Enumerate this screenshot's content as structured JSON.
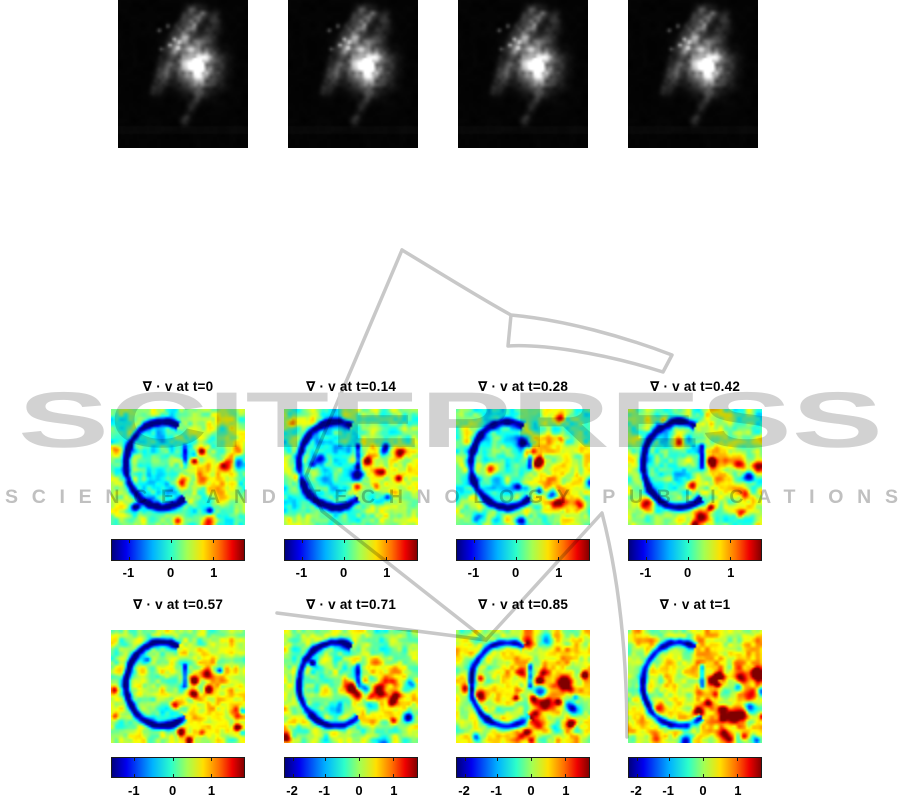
{
  "figure": {
    "description_row_top": {
      "grayscale_frame_count": 4
    },
    "row1": {
      "panels": [
        {
          "title": "∇ · v at t=0",
          "ticks": [
            "-1",
            "0",
            "1"
          ]
        },
        {
          "title": "∇ · v at t=0.14",
          "ticks": [
            "-1",
            "0",
            "1"
          ]
        },
        {
          "title": "∇ · v at t=0.28",
          "ticks": [
            "-1",
            "0",
            "1"
          ]
        },
        {
          "title": "∇ · v at t=0.42",
          "ticks": [
            "-1",
            "0",
            "1"
          ]
        }
      ]
    },
    "row2": {
      "panels": [
        {
          "title": "∇ · v at t=0.57",
          "ticks": [
            "-1",
            "0",
            "1"
          ]
        },
        {
          "title": "∇ · v at t=0.71",
          "ticks": [
            "-2",
            "-1",
            "0",
            "1"
          ]
        },
        {
          "title": "∇ · v at t=0.85",
          "ticks": [
            "-2",
            "-1",
            "0",
            "1"
          ]
        },
        {
          "title": "∇ · v at t=1",
          "ticks": [
            "-2",
            "-1",
            "0",
            "1"
          ]
        }
      ]
    }
  },
  "watermark": {
    "big_text": "SCITEPRESS",
    "sub_text": "SCIENCE AND TECHNOLOGY PUBLICATIONS"
  },
  "colors": {
    "watermark_gray_big": "#d2d2d2",
    "watermark_gray_small": "#c0c0c0",
    "book_stroke": "#c8c8c8",
    "colorbar_border": "#1a1a1a",
    "colormap": "jet"
  },
  "chart_data": {
    "type": "heatmap",
    "title": "Divergence of velocity field over time with MR frames",
    "colormap": "jet",
    "panels": [
      {
        "title": "∇ · v at t=0",
        "colorbar_tick_values": [
          -1,
          0,
          1
        ]
      },
      {
        "title": "∇ · v at t=0.14",
        "colorbar_tick_values": [
          -1,
          0,
          1
        ]
      },
      {
        "title": "∇ · v at t=0.28",
        "colorbar_tick_values": [
          -1,
          0,
          1
        ]
      },
      {
        "title": "∇ · v at t=0.42",
        "colorbar_tick_values": [
          -1,
          0,
          1
        ]
      },
      {
        "title": "∇ · v at t=0.57",
        "colorbar_tick_values": [
          -1,
          0,
          1
        ]
      },
      {
        "title": "∇ · v at t=0.71",
        "colorbar_tick_values": [
          -2,
          -1,
          0,
          1
        ]
      },
      {
        "title": "∇ · v at t=0.85",
        "colorbar_tick_values": [
          -2,
          -1,
          0,
          1
        ]
      },
      {
        "title": "∇ · v at t=1",
        "colorbar_tick_values": [
          -2,
          -1,
          0,
          1
        ]
      }
    ],
    "top_row": {
      "type": "grayscale-images",
      "count": 4,
      "labels": []
    }
  }
}
